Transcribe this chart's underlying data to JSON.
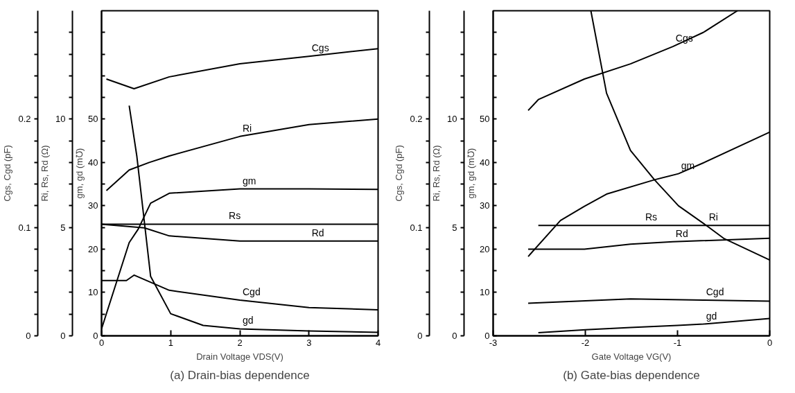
{
  "chart_data": [
    {
      "type": "line",
      "title": "(a) Drain-bias dependence",
      "xlabel": "Drain Voltage VDS(V)",
      "ylabel": "gm, gd (m℧)",
      "y2label": "Ri, Rs, Rd (Ω)",
      "y3label": "Cgs, Cgd (pF)",
      "xlim": [
        0,
        4
      ],
      "xticks": [
        0,
        1,
        2,
        3,
        4
      ],
      "ylim": [
        0,
        75
      ],
      "yticks": [
        0,
        {
          "value": 5,
          "label": null
        },
        10,
        {
          "value": 15,
          "label": null
        },
        20,
        {
          "value": 25,
          "label": null
        },
        30,
        {
          "value": 35,
          "label": null
        },
        40,
        {
          "value": 45,
          "label": null
        },
        50,
        {
          "value": 55,
          "label": null
        },
        {
          "value": 60,
          "label": null
        },
        {
          "value": 65,
          "label": null
        },
        {
          "value": 70,
          "label": null
        }
      ],
      "y2lim": [
        0,
        15
      ],
      "y2ticks": [
        0,
        {
          "value": 1,
          "label": null
        },
        {
          "value": 2,
          "label": null
        },
        {
          "value": 3,
          "label": null
        },
        {
          "value": 4,
          "label": null
        },
        5,
        {
          "value": 6,
          "label": null
        },
        {
          "value": 7,
          "label": null
        },
        {
          "value": 8,
          "label": null
        },
        {
          "value": 9,
          "label": null
        },
        10,
        {
          "value": 11,
          "label": null
        },
        {
          "value": 12,
          "label": null
        },
        {
          "value": 13,
          "label": null
        },
        {
          "value": 14,
          "label": null
        }
      ],
      "y3lim": [
        0,
        0.3
      ],
      "y3ticks": [
        0,
        {
          "value": 0.02,
          "label": null
        },
        {
          "value": 0.04,
          "label": null
        },
        {
          "value": 0.06,
          "label": null
        },
        {
          "value": 0.08,
          "label": null
        },
        0.1,
        {
          "value": 0.12,
          "label": null
        },
        {
          "value": 0.14,
          "label": null
        },
        {
          "value": 0.16,
          "label": null
        },
        {
          "value": 0.18,
          "label": null
        },
        0.2,
        {
          "value": 0.22,
          "label": null
        },
        {
          "value": 0.24,
          "label": null
        },
        {
          "value": 0.26,
          "label": null
        },
        {
          "value": 0.28,
          "label": null
        }
      ],
      "grid": false,
      "marker": "none",
      "line_style": "solid",
      "series": [
        {
          "name": "Cgs",
          "color": "#000000",
          "axis": "y3",
          "x": [
            0.07,
            0.47,
            0.98,
            2,
            3,
            4
          ],
          "values": [
            0.237,
            0.228,
            0.239,
            0.251,
            0.258,
            0.265
          ]
        },
        {
          "name": "Ri",
          "color": "#000000",
          "axis": "y2",
          "x": [
            0.07,
            0.4,
            0.69,
            0.98,
            2,
            3,
            4
          ],
          "values": [
            6.7,
            7.65,
            8.0,
            8.3,
            9.2,
            9.75,
            10.0
          ]
        },
        {
          "name": "gm",
          "color": "#000000",
          "axis": "y",
          "x": [
            0,
            0.4,
            0.53,
            0.71,
            0.98,
            2,
            3,
            4
          ],
          "values": [
            1.6,
            21.5,
            24.6,
            30.6,
            32.9,
            33.9,
            33.9,
            33.8
          ]
        },
        {
          "name": "Rs",
          "color": "#000000",
          "axis": "y2",
          "x": [
            0,
            4
          ],
          "values": [
            5.15,
            5.15
          ]
        },
        {
          "name": "Rd",
          "color": "#000000",
          "axis": "y2",
          "x": [
            0,
            0.62,
            0.98,
            2,
            3,
            4
          ],
          "values": [
            5.15,
            4.98,
            4.61,
            4.37,
            4.37,
            4.37
          ]
        },
        {
          "name": "Cgd",
          "color": "#000000",
          "axis": "y3",
          "x": [
            0,
            0.36,
            0.47,
            0.98,
            2,
            3,
            4
          ],
          "values": [
            0.051,
            0.051,
            0.056,
            0.042,
            0.033,
            0.026,
            0.024
          ]
        },
        {
          "name": "gd",
          "color": "#000000",
          "axis": "y",
          "x": [
            0.4,
            0.51,
            0.71,
            1,
            1.47,
            2,
            3,
            4
          ],
          "values": [
            53.1,
            41.5,
            13.7,
            5.1,
            2.4,
            1.6,
            1.1,
            0.8
          ]
        }
      ]
    },
    {
      "type": "line",
      "title": "(b) Gate-bias dependence",
      "xlabel": "Gate Voltage VG(V)",
      "ylabel": "gm, gd (m℧)",
      "y2label": "Ri, Rs, Rd (Ω)",
      "y3label": "Cgs, Cgd (pF)",
      "xlim": [
        -3,
        0
      ],
      "xticks": [
        -3,
        -2,
        -1,
        0
      ],
      "ylim": [
        0,
        75
      ],
      "yticks": [
        0,
        {
          "value": 5,
          "label": null
        },
        10,
        {
          "value": 15,
          "label": null
        },
        20,
        {
          "value": 25,
          "label": null
        },
        30,
        {
          "value": 35,
          "label": null
        },
        40,
        {
          "value": 45,
          "label": null
        },
        50,
        {
          "value": 55,
          "label": null
        },
        {
          "value": 60,
          "label": null
        },
        {
          "value": 65,
          "label": null
        },
        {
          "value": 70,
          "label": null
        }
      ],
      "y2lim": [
        0,
        15
      ],
      "y2ticks": [
        0,
        {
          "value": 1,
          "label": null
        },
        {
          "value": 2,
          "label": null
        },
        {
          "value": 3,
          "label": null
        },
        {
          "value": 4,
          "label": null
        },
        5,
        {
          "value": 6,
          "label": null
        },
        {
          "value": 7,
          "label": null
        },
        {
          "value": 8,
          "label": null
        },
        {
          "value": 9,
          "label": null
        },
        10,
        {
          "value": 11,
          "label": null
        },
        {
          "value": 12,
          "label": null
        },
        {
          "value": 13,
          "label": null
        },
        {
          "value": 14,
          "label": null
        }
      ],
      "y3lim": [
        0,
        0.3
      ],
      "y3ticks": [
        0,
        {
          "value": 0.02,
          "label": null
        },
        {
          "value": 0.04,
          "label": null
        },
        {
          "value": 0.06,
          "label": null
        },
        {
          "value": 0.08,
          "label": null
        },
        0.1,
        {
          "value": 0.12,
          "label": null
        },
        {
          "value": 0.14,
          "label": null
        },
        {
          "value": 0.16,
          "label": null
        },
        {
          "value": 0.18,
          "label": null
        },
        0.2,
        {
          "value": 0.22,
          "label": null
        },
        {
          "value": 0.24,
          "label": null
        },
        {
          "value": 0.26,
          "label": null
        },
        {
          "value": 0.28,
          "label": null
        }
      ],
      "grid": false,
      "marker": "none",
      "line_style": "solid",
      "series": [
        {
          "name": "Cgs",
          "color": "#000000",
          "axis": "y3",
          "x": [
            -2.62,
            -2.51,
            -2.01,
            -1.51,
            -1.05,
            -0.72,
            -0.35
          ],
          "values": [
            0.208,
            0.218,
            0.237,
            0.251,
            0.267,
            0.28,
            0.3
          ]
        },
        {
          "name": "Ri",
          "color": "#000000",
          "axis": "y2",
          "x": [
            -1.94,
            -1.77,
            -1.51,
            -1.25,
            -0.99,
            -0.69,
            -0.5,
            0
          ],
          "values": [
            15,
            11.2,
            8.55,
            7.2,
            6.0,
            5.1,
            4.5,
            3.5
          ]
        },
        {
          "name": "gm",
          "color": "#000000",
          "axis": "y",
          "x": [
            -2.62,
            -2.27,
            -2.01,
            -1.77,
            -1.25,
            -0.99,
            -0.72,
            0
          ],
          "values": [
            18.3,
            26.6,
            29.9,
            32.7,
            36.0,
            37.4,
            39.9,
            47
          ]
        },
        {
          "name": "Rs",
          "color": "#000000",
          "axis": "y2",
          "x": [
            -2.51,
            0
          ],
          "values": [
            5.09,
            5.09
          ]
        },
        {
          "name": "Rd",
          "color": "#000000",
          "axis": "y2",
          "x": [
            -2.62,
            -2.01,
            -1.51,
            -1.05,
            0
          ],
          "values": [
            4.0,
            4.0,
            4.23,
            4.34,
            4.5
          ]
        },
        {
          "name": "Cgd",
          "color": "#000000",
          "axis": "y3",
          "x": [
            -2.62,
            -1.51,
            -0.72,
            0
          ],
          "values": [
            0.03,
            0.034,
            0.033,
            0.032
          ]
        },
        {
          "name": "gd",
          "color": "#000000",
          "axis": "y",
          "x": [
            -2.51,
            -2.0,
            -1.51,
            -1.0,
            -0.72,
            0
          ],
          "values": [
            0.7,
            1.4,
            1.9,
            2.4,
            2.7,
            4
          ]
        }
      ]
    }
  ]
}
